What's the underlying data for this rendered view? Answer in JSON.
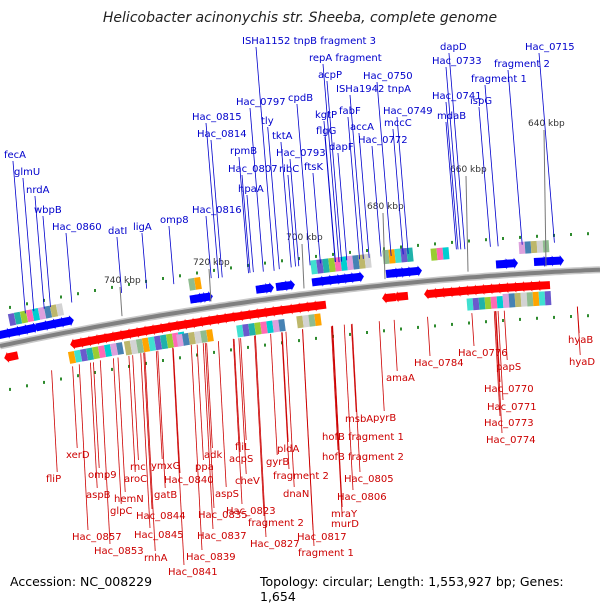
{
  "title": "Helicobacter acinonychis str. Sheeba, complete genome",
  "accession": "Accession: NC_008229",
  "topology": "Topology: circular; Length: 1,553,927 bp; Genes: 1,654",
  "colors": {
    "forward_genes": "#0000ff",
    "reverse_genes": "#ff0000",
    "backbone": "#808080",
    "ticks": "#2e8b2e",
    "forward_labels": "#0000cc",
    "reverse_labels": "#cc0000"
  },
  "backbone_ticks": [
    "640 kbp",
    "660 kbp",
    "680 kbp",
    "700 kbp",
    "720 kbp",
    "740 kbp"
  ],
  "forward_labels": [
    "fecA",
    "glmU",
    "nrdA",
    "wbpB",
    "Hac_0860",
    "datI",
    "ligA",
    "omp8",
    "Hac_0816",
    "hpaA",
    "Hac_0807",
    "rpmB",
    "Hac_0814",
    "Hac_0815",
    "tly",
    "tktA",
    "Hac_0797",
    "cpdB",
    "Hac_0793",
    "ribC",
    "ftsK",
    "kgtP",
    "flgG",
    "dapF",
    "acpP",
    "fabF",
    "accA",
    "ISHa1942 tnpA",
    "mccC",
    "Hac_0772",
    "Hac_0750",
    "Hac_0749",
    "ISHa1152 tnpB fragment 3",
    "repA fragment",
    "Hac_0741",
    "mdaB",
    "ispG",
    "dapD",
    "Hac_0733",
    "fragment 1",
    "fragment 2",
    "Hac_0715"
  ],
  "reverse_labels": [
    "fliP",
    "xerD",
    "omp9",
    "aspB",
    "Hac_0857",
    "glpC",
    "hemN",
    "Hac_0853",
    "rnc",
    "aroC",
    "ymxG",
    "gatB",
    "Hac_0844",
    "Hac_0845",
    "rnhA",
    "Hac_0841",
    "Hac_0840",
    "ppa",
    "adk",
    "Hac_0839",
    "Hac_0837",
    "Hac_0835",
    "aspS",
    "cheV",
    "acpS",
    "fliL",
    "Hac_0823",
    "fragment 2",
    "Hac_0827",
    "gyrB",
    "fragment 2",
    "dnaN",
    "pldA",
    "Hac_0817",
    "fragment 1",
    "murD",
    "mraY",
    "Hac_0806",
    "Hac_0805",
    "hofB fragment 2",
    "hofB fragment 1",
    "msbA",
    "pyrB",
    "amaA",
    "Hac_0784",
    "Hac_0776",
    "papS",
    "Hac_0770",
    "Hac_0771",
    "Hac_0773",
    "Hac_0774",
    "hyaB",
    "hyaD"
  ]
}
